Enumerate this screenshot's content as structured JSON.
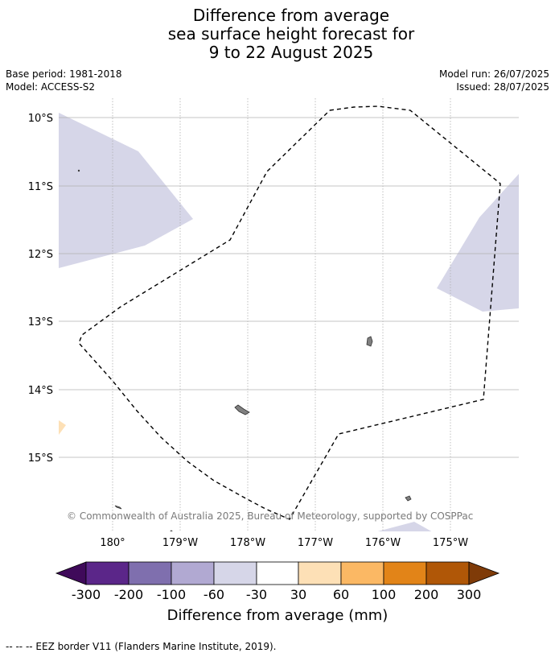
{
  "header": {
    "title_lines": [
      "Difference from average",
      "sea surface height forecast for",
      "9 to 22 August 2025"
    ],
    "base_period": "Base period: 1981-2018",
    "model": "Model: ACCESS-S2",
    "model_run": "Model run: 26/07/2025",
    "issued": "Issued: 28/07/2025"
  },
  "map": {
    "lat_labels": [
      "10°S",
      "11°S",
      "12°S",
      "13°S",
      "14°S",
      "15°S"
    ],
    "lon_labels": [
      "180°",
      "179°W",
      "178°W",
      "177°W",
      "176°W",
      "175°W"
    ],
    "credit": "© Commonwealth of Australia 2025, Bureau of Meteorology, supported by COSPPac",
    "colors": {
      "light_purple": "#d6d6e8",
      "light_orange": "#fde0b6",
      "land": "#808080",
      "grid": "#b0b0b0"
    },
    "layers": [
      "sea surface height anomaly shading",
      "land",
      "EEZ border (dashed)",
      "graticule"
    ]
  },
  "colorbar": {
    "tick_labels": [
      "-300",
      "-200",
      "-100",
      "-60",
      "-30",
      "30",
      "60",
      "100",
      "200",
      "300"
    ],
    "colors": [
      "#3f0a5a",
      "#5b2689",
      "#7f6fae",
      "#b1a9d2",
      "#d6d6e8",
      "#ffffff",
      "#fde0b6",
      "#fbb864",
      "#e28418",
      "#b05707",
      "#7f3b08"
    ],
    "label": "Difference from average (mm)"
  },
  "footer": {
    "legend_text": "--  --  -- EEZ border V11 (Flanders Marine Institute, 2019)."
  }
}
